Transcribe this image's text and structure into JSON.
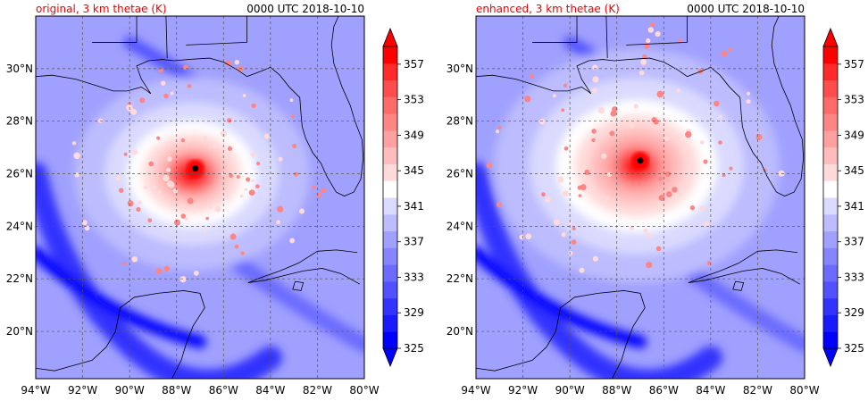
{
  "colors": {
    "title_left": "#ee0000",
    "levels": [
      "#0000ff",
      "#1a1aff",
      "#3333ff",
      "#5151ff",
      "#6b6bff",
      "#8585ff",
      "#a0a0ff",
      "#bcbcff",
      "#dadaff",
      "#ffffff",
      "#ffdada",
      "#ffbcbc",
      "#ffa0a0",
      "#ff8585",
      "#ff6b6b",
      "#ff4d4d",
      "#ff2a2a",
      "#ff0000"
    ],
    "coast": "#000000",
    "grid": "#555555"
  },
  "panels": [
    {
      "title": "original, 3 km thetae (K)",
      "time": "0000 UTC 2018-10-10",
      "storm": {
        "lon": -87.2,
        "lat": 26.2,
        "intensity": 0.8
      }
    },
    {
      "title": "enhanced, 3 km thetae (K)",
      "time": "0000 UTC 2018-10-10",
      "storm": {
        "lon": -87.0,
        "lat": 26.5,
        "intensity": 1.0
      }
    }
  ],
  "map": {
    "lon_range": [
      -94,
      -80
    ],
    "lat_range": [
      18.2,
      32.0
    ],
    "lon_ticks": [
      {
        "v": -94,
        "label": "94°W"
      },
      {
        "v": -92,
        "label": "92°W"
      },
      {
        "v": -90,
        "label": "90°W"
      },
      {
        "v": -88,
        "label": "88°W"
      },
      {
        "v": -86,
        "label": "86°W"
      },
      {
        "v": -84,
        "label": "84°W"
      },
      {
        "v": -82,
        "label": "82°W"
      },
      {
        "v": -80,
        "label": "80°W"
      }
    ],
    "lat_ticks": [
      {
        "v": 20,
        "label": "20°N"
      },
      {
        "v": 22,
        "label": "22°N"
      },
      {
        "v": 24,
        "label": "24°N"
      },
      {
        "v": 26,
        "label": "26°N"
      },
      {
        "v": 28,
        "label": "28°N"
      },
      {
        "v": 30,
        "label": "30°N"
      }
    ]
  },
  "colorbar": {
    "min": 325,
    "max": 359,
    "step": 2,
    "tick_labels": [
      "325",
      "329",
      "333",
      "337",
      "341",
      "345",
      "349",
      "353",
      "357"
    ]
  }
}
